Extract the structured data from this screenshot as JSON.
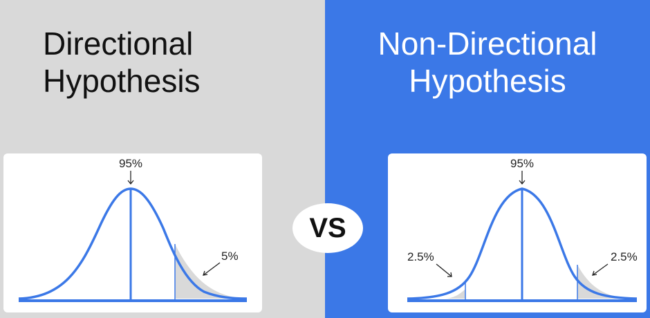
{
  "left": {
    "title_line1": "Directional",
    "title_line2": "Hypothesis",
    "center_label": "95%",
    "tail_label": "5%"
  },
  "right": {
    "title_line1": "Non-Directional",
    "title_line2": "Hypothesis",
    "center_label": "95%",
    "left_tail_label": "2.5%",
    "right_tail_label": "2.5%"
  },
  "vs_label": "VS",
  "colors": {
    "left_background": "#d9d9d9",
    "right_background": "#3b78e7",
    "curve": "#3b78e7",
    "shaded_tail": "#d9d9d9",
    "card": "#ffffff"
  }
}
